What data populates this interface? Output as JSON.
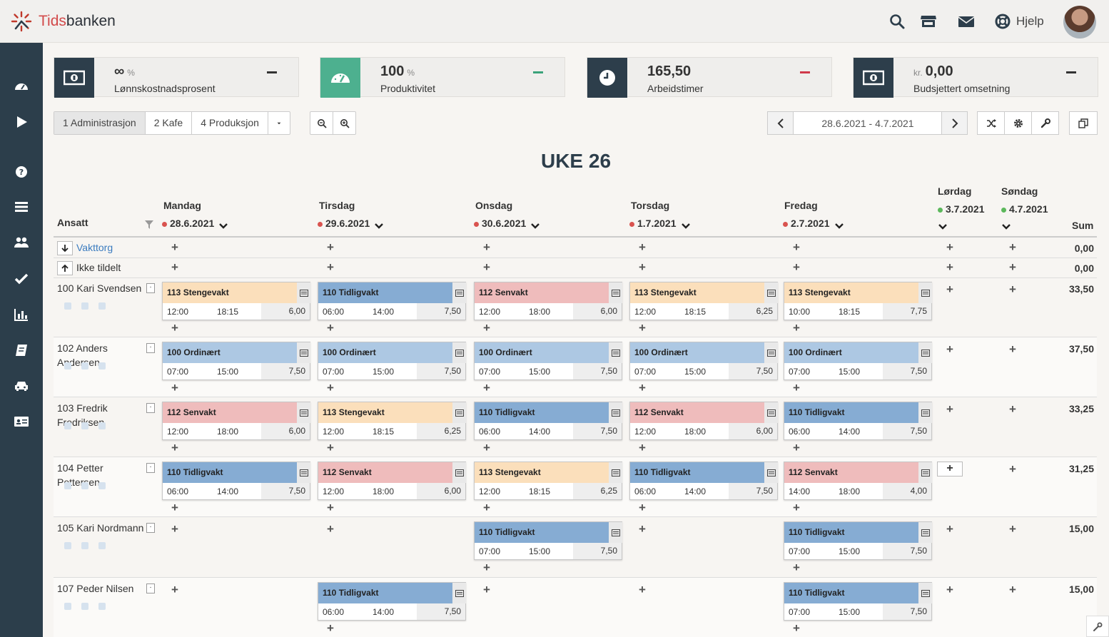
{
  "app": {
    "brand_a": "Tids",
    "brand_b": "banken",
    "help_label": "Hjelp"
  },
  "topbar_icons": [
    "search-icon",
    "store-icon",
    "mail-icon",
    "lifebuoy-icon"
  ],
  "sidebar_icons": [
    "dashboard-icon",
    "play-icon",
    "help-icon",
    "list-icon",
    "users-icon",
    "check-icon",
    "chart-icon",
    "book-icon",
    "car-icon",
    "id-card-icon"
  ],
  "kpis": [
    {
      "value": "∞",
      "unit": "%",
      "label": "Lønnskostnadsprosent",
      "icon": "money-icon",
      "icon_bg": "#2d3e4b",
      "dash_color": "#333333"
    },
    {
      "value": "100",
      "unit": "%",
      "label": "Produktivitet",
      "icon": "gauge-icon",
      "icon_bg": "#4db08f",
      "dash_color": "#3aa27a"
    },
    {
      "value": "165,50",
      "unit": "",
      "label": "Arbeidstimer",
      "icon": "clock-icon",
      "icon_bg": "#2d3e4b",
      "dash_color": "#d0394a"
    },
    {
      "value": "0,00",
      "prefix": "kr.",
      "unit": "",
      "label": "Budsjettert omsetning",
      "icon": "money-icon",
      "icon_bg": "#2d3e4b",
      "dash_color": "#333333"
    }
  ],
  "tabs": [
    "1 Administrasjon",
    "2 Kafe",
    "4 Produksjon"
  ],
  "date_range": "28.6.2021 - 4.7.2021",
  "week_title": "UKE 26",
  "columns": {
    "employee": "Ansatt",
    "sum": "Sum",
    "days": [
      {
        "name": "Mandag",
        "date": "28.6.2021",
        "dot": "#d9534f"
      },
      {
        "name": "Tirsdag",
        "date": "29.6.2021",
        "dot": "#d9534f"
      },
      {
        "name": "Onsdag",
        "date": "30.6.2021",
        "dot": "#d9534f"
      },
      {
        "name": "Torsdag",
        "date": "1.7.2021",
        "dot": "#d9534f"
      },
      {
        "name": "Fredag",
        "date": "2.7.2021",
        "dot": "#d9534f"
      },
      {
        "name": "Lørdag",
        "date": "3.7.2021",
        "dot": "#5cb85c"
      },
      {
        "name": "Søndag",
        "date": "4.7.2021",
        "dot": "#5cb85c"
      }
    ]
  },
  "special_rows": [
    {
      "label": "Vakttorg",
      "sum": "0,00"
    },
    {
      "label": "Ikke tildelt",
      "sum": "0,00"
    }
  ],
  "employees": [
    {
      "name": "100 Kari Svendsen",
      "sum": "33,50",
      "shifts": [
        {
          "day": 0,
          "title": "113 Stengevakt",
          "start": "12:00",
          "end": "18:15",
          "hours": "6,00",
          "kind": "steng"
        },
        {
          "day": 1,
          "title": "110 Tidligvakt",
          "start": "06:00",
          "end": "14:00",
          "hours": "7,50",
          "kind": "tidl"
        },
        {
          "day": 2,
          "title": "112 Senvakt",
          "start": "12:00",
          "end": "18:00",
          "hours": "6,00",
          "kind": "sen"
        },
        {
          "day": 3,
          "title": "113 Stengevakt",
          "start": "12:00",
          "end": "18:15",
          "hours": "6,25",
          "kind": "steng"
        },
        {
          "day": 4,
          "title": "113 Stengevakt",
          "start": "10:00",
          "end": "18:15",
          "hours": "7,75",
          "kind": "steng"
        }
      ]
    },
    {
      "name": "102 Anders Andersen",
      "sum": "37,50",
      "shifts": [
        {
          "day": 0,
          "title": "100 Ordinært",
          "start": "07:00",
          "end": "15:00",
          "hours": "7,50",
          "kind": "ord"
        },
        {
          "day": 1,
          "title": "100 Ordinært",
          "start": "07:00",
          "end": "15:00",
          "hours": "7,50",
          "kind": "ord"
        },
        {
          "day": 2,
          "title": "100 Ordinært",
          "start": "07:00",
          "end": "15:00",
          "hours": "7,50",
          "kind": "ord"
        },
        {
          "day": 3,
          "title": "100 Ordinært",
          "start": "07:00",
          "end": "15:00",
          "hours": "7,50",
          "kind": "ord"
        },
        {
          "day": 4,
          "title": "100 Ordinært",
          "start": "07:00",
          "end": "15:00",
          "hours": "7,50",
          "kind": "ord"
        }
      ]
    },
    {
      "name": "103 Fredrik Fredriksen",
      "sum": "33,25",
      "shifts": [
        {
          "day": 0,
          "title": "112 Senvakt",
          "start": "12:00",
          "end": "18:00",
          "hours": "6,00",
          "kind": "sen"
        },
        {
          "day": 1,
          "title": "113 Stengevakt",
          "start": "12:00",
          "end": "18:15",
          "hours": "6,25",
          "kind": "steng"
        },
        {
          "day": 2,
          "title": "110 Tidligvakt",
          "start": "06:00",
          "end": "14:00",
          "hours": "7,50",
          "kind": "tidl"
        },
        {
          "day": 3,
          "title": "112 Senvakt",
          "start": "12:00",
          "end": "18:00",
          "hours": "6,00",
          "kind": "sen"
        },
        {
          "day": 4,
          "title": "110 Tidligvakt",
          "start": "06:00",
          "end": "14:00",
          "hours": "7,50",
          "kind": "tidl"
        }
      ]
    },
    {
      "name": "104 Petter Pettersen",
      "sum": "31,25",
      "shifts": [
        {
          "day": 0,
          "title": "110 Tidligvakt",
          "start": "06:00",
          "end": "14:00",
          "hours": "7,50",
          "kind": "tidl"
        },
        {
          "day": 1,
          "title": "112 Senvakt",
          "start": "12:00",
          "end": "18:00",
          "hours": "6,00",
          "kind": "sen"
        },
        {
          "day": 2,
          "title": "113 Stengevakt",
          "start": "12:00",
          "end": "18:15",
          "hours": "6,25",
          "kind": "steng"
        },
        {
          "day": 3,
          "title": "110 Tidligvakt",
          "start": "06:00",
          "end": "14:00",
          "hours": "7,50",
          "kind": "tidl"
        },
        {
          "day": 4,
          "title": "112 Senvakt",
          "start": "14:00",
          "end": "18:00",
          "hours": "4,00",
          "kind": "sen"
        }
      ]
    },
    {
      "name": "105 Kari Nordmann",
      "sum": "15,00",
      "shifts": [
        {
          "day": 2,
          "title": "110 Tidligvakt",
          "start": "07:00",
          "end": "15:00",
          "hours": "7,50",
          "kind": "tidl"
        },
        {
          "day": 4,
          "title": "110 Tidligvakt",
          "start": "07:00",
          "end": "15:00",
          "hours": "7,50",
          "kind": "tidl"
        }
      ]
    },
    {
      "name": "107 Peder Nilsen",
      "sum": "15,00",
      "shifts": [
        {
          "day": 1,
          "title": "110 Tidligvakt",
          "start": "06:00",
          "end": "14:00",
          "hours": "7,50",
          "kind": "tidl"
        },
        {
          "day": 4,
          "title": "110 Tidligvakt",
          "start": "07:00",
          "end": "15:00",
          "hours": "7,50",
          "kind": "tidl"
        }
      ]
    }
  ]
}
